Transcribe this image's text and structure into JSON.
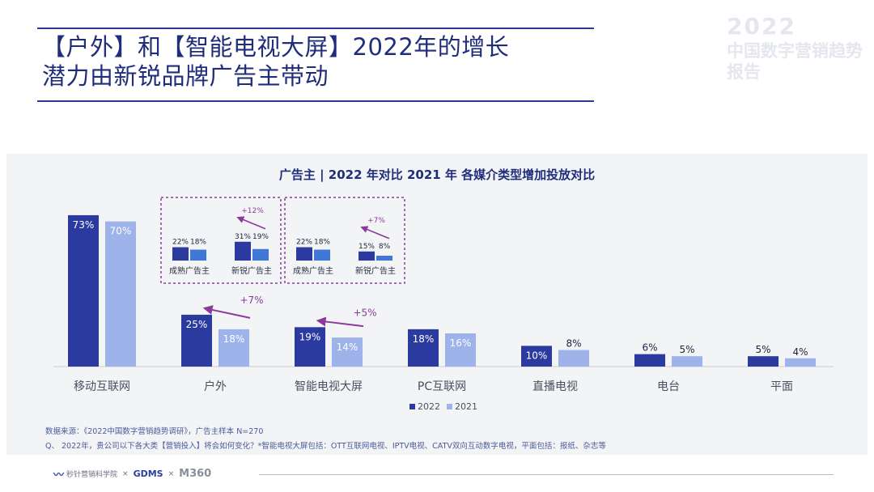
{
  "page": {
    "title_line1": "【户外】和【智能电视大屏】2022年的增长",
    "title_line2": "潜力由新锐品牌广告主带动",
    "watermark_year": "2022",
    "watermark_text": "中国数字营销趋势报告"
  },
  "chart_data": {
    "type": "bar",
    "title": "广告主 | 2022 年对比 2021 年 各媒介类型增加投放对比",
    "categories": [
      "移动互联网",
      "户外",
      "智能电视大屏",
      "PC互联网",
      "直播电视",
      "电台",
      "平面"
    ],
    "series": [
      {
        "name": "2022",
        "values": [
          73,
          25,
          19,
          18,
          10,
          6,
          5
        ],
        "labels": [
          "73%",
          "25%",
          "19%",
          "18%",
          "10%",
          "6%",
          "5%"
        ],
        "color": "#2b3a9e"
      },
      {
        "name": "2021",
        "values": [
          70,
          18,
          14,
          16,
          8,
          5,
          4
        ],
        "labels": [
          "70%",
          "18%",
          "14%",
          "16%",
          "8%",
          "5%",
          "4%"
        ],
        "color": "#9db3ea"
      }
    ],
    "ylim": [
      0,
      80
    ],
    "legend_position": "bottom-center",
    "growth_annotations": [
      {
        "category": "户外",
        "label": "+7%"
      },
      {
        "category": "智能电视大屏",
        "label": "+5%"
      }
    ],
    "insets": [
      {
        "name": "户外",
        "categories": [
          "成熟广告主",
          "新锐广告主"
        ],
        "values_2022": [
          22,
          31
        ],
        "values_2021": [
          18,
          19
        ],
        "labels_2022": [
          "22%",
          "31%"
        ],
        "labels_2021": [
          "18%",
          "19%"
        ],
        "growth_label": "+12%"
      },
      {
        "name": "智能电视大屏",
        "categories": [
          "成熟广告主",
          "新锐广告主"
        ],
        "values_2022": [
          22,
          15
        ],
        "values_2021": [
          18,
          8
        ],
        "labels_2022": [
          "22%",
          "15%"
        ],
        "labels_2021": [
          "18%",
          "8%"
        ],
        "growth_label": "+7%"
      }
    ]
  },
  "notes": {
    "source": "数据来源：《2022中国数字营销趋势调研》，广告主样本 N=270",
    "question": "Q、 2022年，贵公司以下各大类【营销投入】将会如何变化？*智能电视大屏包括：OTT互联网电视、IPTV电视、CATV双向互动数字电视，平面包括：报纸、杂志等"
  },
  "footer": {
    "logo1": "秒针营销科学院",
    "logo2": "GDMS",
    "logo3": "M360",
    "separator": "×"
  },
  "colors": {
    "primary": "#2b3a9e",
    "secondary": "#9db3ea",
    "accent": "#8b3a9c",
    "inset_secondary": "#3f78d6"
  }
}
